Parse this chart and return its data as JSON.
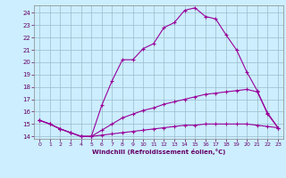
{
  "xlabel": "Windchill (Refroidissement éolien,°C)",
  "bg_color": "#cceeff",
  "grid_color": "#99bbcc",
  "line_color": "#990099",
  "xlim": [
    -0.5,
    23.5
  ],
  "ylim": [
    13.8,
    24.6
  ],
  "xticks": [
    0,
    1,
    2,
    3,
    4,
    5,
    6,
    7,
    8,
    9,
    10,
    11,
    12,
    13,
    14,
    15,
    16,
    17,
    18,
    19,
    20,
    21,
    22,
    23
  ],
  "yticks": [
    14,
    15,
    16,
    17,
    18,
    19,
    20,
    21,
    22,
    23,
    24
  ],
  "line1_x": [
    0,
    1,
    2,
    3,
    4,
    5,
    6,
    7,
    8,
    9,
    10,
    11,
    12,
    13,
    14,
    15,
    16,
    17,
    18,
    19,
    20,
    21,
    22,
    23
  ],
  "line1_y": [
    15.3,
    15.0,
    14.6,
    14.3,
    14.0,
    14.0,
    16.5,
    18.5,
    20.2,
    20.2,
    21.1,
    21.5,
    22.8,
    23.2,
    24.2,
    24.4,
    23.7,
    23.5,
    22.2,
    21.0,
    19.2,
    17.7,
    15.8,
    14.7
  ],
  "line2_x": [
    0,
    1,
    2,
    3,
    4,
    5,
    6,
    7,
    8,
    9,
    10,
    11,
    12,
    13,
    14,
    15,
    16,
    17,
    18,
    19,
    20,
    21,
    22,
    23
  ],
  "line2_y": [
    15.3,
    15.0,
    14.6,
    14.3,
    14.0,
    14.0,
    14.5,
    15.0,
    15.5,
    15.8,
    16.1,
    16.3,
    16.6,
    16.8,
    17.0,
    17.2,
    17.4,
    17.5,
    17.6,
    17.7,
    17.8,
    17.6,
    15.9,
    14.7
  ],
  "line3_x": [
    0,
    1,
    2,
    3,
    4,
    5,
    6,
    7,
    8,
    9,
    10,
    11,
    12,
    13,
    14,
    15,
    16,
    17,
    18,
    19,
    20,
    21,
    22,
    23
  ],
  "line3_y": [
    15.3,
    15.0,
    14.6,
    14.3,
    14.0,
    14.0,
    14.1,
    14.2,
    14.3,
    14.4,
    14.5,
    14.6,
    14.7,
    14.8,
    14.9,
    14.9,
    15.0,
    15.0,
    15.0,
    15.0,
    15.0,
    14.9,
    14.8,
    14.7
  ]
}
